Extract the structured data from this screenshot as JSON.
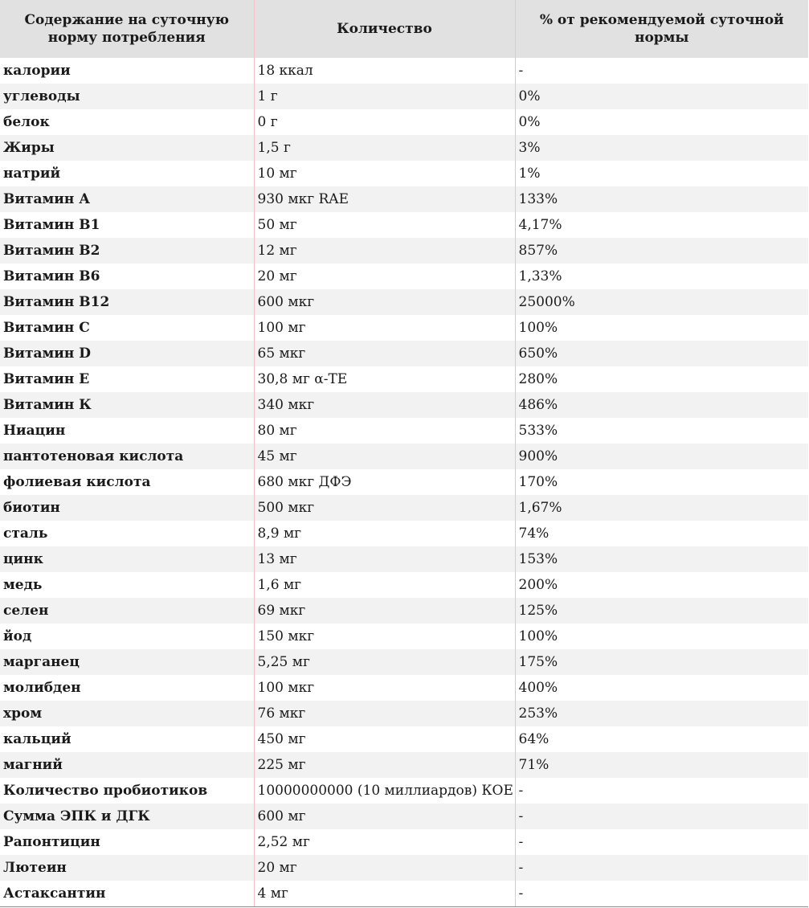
{
  "headers": [
    "Содержание на суточную норму потребления",
    "Количество",
    "% от рекомендуемой суточной нормы"
  ],
  "rows": [
    {
      "name": "калории",
      "amount": "18 ккал",
      "percent": "-"
    },
    {
      "name": "углеводы",
      "amount": "1 г",
      "percent": "0%"
    },
    {
      "name": "белок",
      "amount": "0 г",
      "percent": "0%"
    },
    {
      "name": "Жиры",
      "amount": "1,5 г",
      "percent": "3%"
    },
    {
      "name": "натрий",
      "amount": "10 мг",
      "percent": "1%"
    },
    {
      "name": "Витамин А",
      "amount": "930 мкг RAE",
      "percent": "133%"
    },
    {
      "name": "Витамин B1",
      "amount": "50 мг",
      "percent": "4,17%"
    },
    {
      "name": "Витамин B2",
      "amount": "12 мг",
      "percent": "857%"
    },
    {
      "name": "Витамин B6",
      "amount": "20 мг",
      "percent": "1,33%"
    },
    {
      "name": "Витамин B12",
      "amount": "600 мкг",
      "percent": "25000%"
    },
    {
      "name": "Витамин С",
      "amount": "100 мг",
      "percent": "100%"
    },
    {
      "name": "Витамин D",
      "amount": "65 мкг",
      "percent": "650%"
    },
    {
      "name": "Витамин Е",
      "amount": "30,8 мг α-TE",
      "percent": "280%"
    },
    {
      "name": "Витамин К",
      "amount": "340 мкг",
      "percent": "486%"
    },
    {
      "name": "Ниацин",
      "amount": "80 мг",
      "percent": "533%"
    },
    {
      "name": "пантотеновая кислота",
      "amount": "45 мг",
      "percent": "900%"
    },
    {
      "name": "фолиевая кислота",
      "amount": "680 мкг ДФЭ",
      "percent": "170%"
    },
    {
      "name": "биотин",
      "amount": "500 мкг",
      "percent": "1,67%"
    },
    {
      "name": "сталь",
      "amount": "8,9 мг",
      "percent": "74%"
    },
    {
      "name": "цинк",
      "amount": "13 мг",
      "percent": "153%"
    },
    {
      "name": "медь",
      "amount": "1,6 мг",
      "percent": "200%"
    },
    {
      "name": "селен",
      "amount": "69 мкг",
      "percent": "125%"
    },
    {
      "name": "йод",
      "amount": "150 мкг",
      "percent": "100%"
    },
    {
      "name": "марганец",
      "amount": "5,25 мг",
      "percent": "175%"
    },
    {
      "name": "молибден",
      "amount": "100 мкг",
      "percent": "400%"
    },
    {
      "name": "хром",
      "amount": "76 мкг",
      "percent": "253%"
    },
    {
      "name": "кальций",
      "amount": "450 мг",
      "percent": "64%"
    },
    {
      "name": "магний",
      "amount": "225 мг",
      "percent": "71%"
    },
    {
      "name": "Количество пробиотиков",
      "amount": "10000000000 (10 миллиардов) КОЕ",
      "percent": "-"
    },
    {
      "name": "Сумма ЭПК и ДГК",
      "amount": "600 мг",
      "percent": "-"
    },
    {
      "name": "Рапонтицин",
      "amount": "2,52 мг",
      "percent": "-"
    },
    {
      "name": "Лютеин",
      "amount": "20 мг",
      "percent": "-"
    },
    {
      "name": "Астаксантин",
      "amount": "4 мг",
      "percent": "-"
    }
  ]
}
